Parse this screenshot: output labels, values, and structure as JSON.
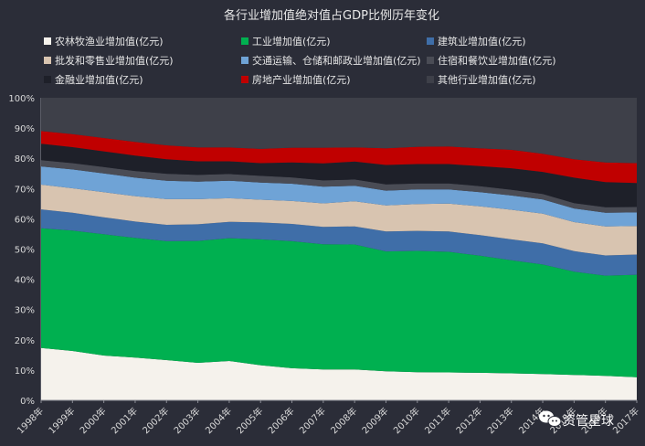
{
  "chart_data": {
    "type": "area",
    "stacked": "percent",
    "title": "各行业增加值绝对值占GDP比例历年变化",
    "categories": [
      "1998年",
      "1999年",
      "2000年",
      "2001年",
      "2002年",
      "2003年",
      "2004年",
      "2005年",
      "2006年",
      "2007年",
      "2008年",
      "2009年",
      "2010年",
      "2011年",
      "2012年",
      "2013年",
      "2014年",
      "2015年",
      "2016年",
      "2017年"
    ],
    "y_ticks": [
      "0%",
      "10%",
      "20%",
      "30%",
      "40%",
      "50%",
      "60%",
      "70%",
      "80%",
      "90%",
      "100%"
    ],
    "ylim": [
      0,
      100
    ],
    "y_unit": "%",
    "legend_position": "top",
    "grid": false,
    "series": [
      {
        "name": "农林牧渔业增加值(亿元)",
        "color": "#f5f2ec",
        "values": [
          17.3,
          16.3,
          14.8,
          14.1,
          13.3,
          12.4,
          13.0,
          11.6,
          10.6,
          10.2,
          10.2,
          9.6,
          9.3,
          9.2,
          9.1,
          8.9,
          8.7,
          8.4,
          8.1,
          7.6
        ]
      },
      {
        "name": "工业增加值(亿元)",
        "color": "#00b050",
        "values": [
          39.6,
          39.8,
          40.1,
          39.6,
          39.3,
          40.3,
          40.6,
          41.6,
          42.0,
          41.4,
          41.3,
          39.6,
          40.1,
          39.9,
          38.7,
          37.4,
          36.2,
          34.1,
          33.1,
          33.9
        ]
      },
      {
        "name": "建筑业增加值(亿元)",
        "color": "#3f6ea8",
        "values": [
          6.2,
          5.9,
          5.6,
          5.4,
          5.4,
          5.5,
          5.4,
          5.6,
          5.7,
          5.7,
          6.0,
          6.6,
          6.6,
          6.7,
          6.8,
          6.9,
          7.0,
          6.8,
          6.7,
          6.7
        ]
      },
      {
        "name": "批发和零售业增加值(亿元)",
        "color": "#d8c4b0",
        "values": [
          8.2,
          8.1,
          8.3,
          8.4,
          8.5,
          8.3,
          7.8,
          7.5,
          7.6,
          7.8,
          8.3,
          8.6,
          8.9,
          9.2,
          9.5,
          9.8,
          9.8,
          9.6,
          9.6,
          9.4
        ]
      },
      {
        "name": "交通运输、仓储和邮政业增加值(亿元)",
        "color": "#6fa3d6",
        "values": [
          6.0,
          6.2,
          6.2,
          6.1,
          6.1,
          5.8,
          5.8,
          5.7,
          5.7,
          5.5,
          5.1,
          4.9,
          4.8,
          4.7,
          4.7,
          4.7,
          4.7,
          4.5,
          4.5,
          4.5
        ]
      },
      {
        "name": "住宿和餐饮业增加值(亿元)",
        "color": "#4a4c55",
        "values": [
          2.1,
          2.1,
          2.1,
          2.2,
          2.3,
          2.2,
          2.2,
          2.2,
          2.1,
          2.1,
          2.1,
          2.1,
          2.0,
          2.0,
          2.0,
          1.9,
          1.8,
          1.8,
          1.8,
          1.8
        ]
      },
      {
        "name": "金融业增加值(亿元)",
        "color": "#1e2029",
        "values": [
          5.4,
          5.3,
          5.2,
          5.1,
          4.8,
          4.5,
          4.2,
          4.2,
          4.9,
          5.6,
          5.9,
          6.4,
          6.4,
          6.4,
          6.6,
          7.1,
          7.3,
          8.4,
          8.3,
          7.9
        ]
      },
      {
        "name": "房地产业增加值(亿元)",
        "color": "#c00000",
        "values": [
          4.2,
          4.3,
          4.4,
          4.5,
          4.6,
          4.6,
          4.6,
          4.7,
          4.9,
          5.2,
          4.7,
          5.5,
          5.7,
          5.8,
          5.9,
          6.1,
          6.0,
          6.1,
          6.5,
          6.6
        ]
      },
      {
        "name": "其他行业增加值(亿元)",
        "color": "#3e4049",
        "values": [
          11.0,
          12.0,
          13.3,
          14.6,
          15.7,
          16.4,
          16.4,
          16.9,
          16.5,
          16.5,
          16.4,
          16.7,
          16.2,
          16.1,
          16.7,
          17.2,
          18.5,
          20.3,
          21.4,
          21.6
        ]
      }
    ]
  },
  "watermark": {
    "text": "资管星球",
    "icon": "wechat-icon"
  }
}
